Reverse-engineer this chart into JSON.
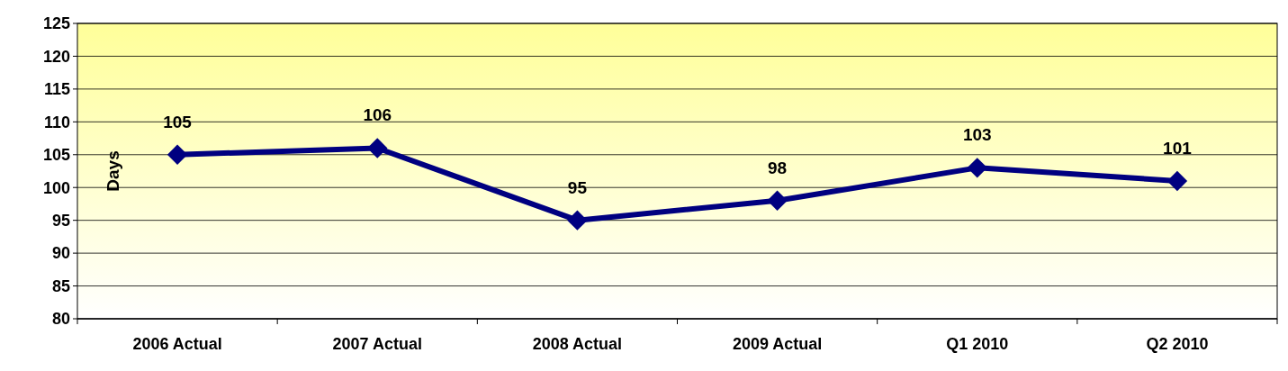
{
  "chart_data": {
    "type": "line",
    "ylabel": "Days",
    "categories": [
      "2006 Actual",
      "2007 Actual",
      "2008 Actual",
      "2009 Actual",
      "Q1 2010",
      "Q2 2010"
    ],
    "series": [
      {
        "color": "#000080",
        "values": [
          105,
          106,
          95,
          98,
          103,
          101
        ]
      }
    ],
    "ylim": [
      80,
      125
    ],
    "yticks": [
      80,
      85,
      90,
      95,
      100,
      105,
      110,
      115,
      120,
      125
    ],
    "grid": "y",
    "marker": "diamond",
    "line_style": "solid",
    "data_labels": true
  }
}
